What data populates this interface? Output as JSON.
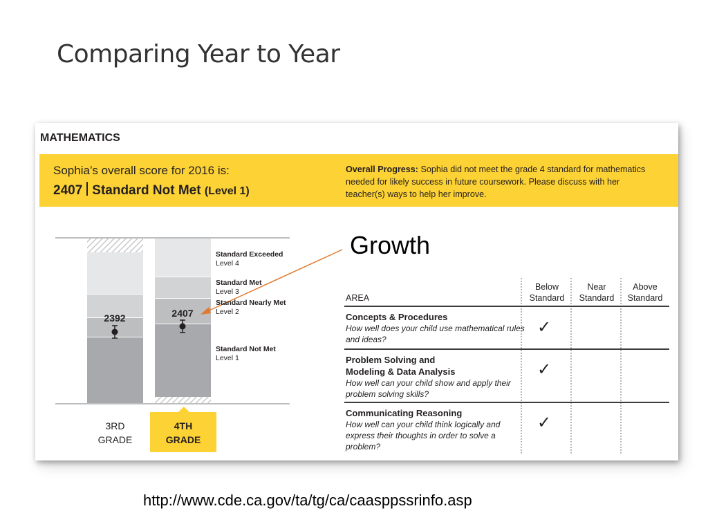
{
  "slide": {
    "title": "Comparing Year to Year",
    "annotation": "Growth",
    "source_url": "http://www.cde.ca.gov/ta/tg/ca/caasppssrinfo.asp"
  },
  "report": {
    "subject": "MATHEMATICS",
    "score_intro": "Sophia’s overall score for 2016 is:",
    "score_value": "2407",
    "score_status": "Standard Not Met",
    "score_level": "(Level 1)",
    "progress_label": "Overall Progress:",
    "progress_text": " Sophia did not meet the grade 4 standard for mathematics needed for likely success in future coursework. Please discuss with her teacher(s) ways to help her improve.",
    "bars": [
      {
        "grade_line1": "3RD",
        "grade_line2": "GRADE",
        "score": "2392",
        "current": false
      },
      {
        "grade_line1": "4TH",
        "grade_line2": "GRADE",
        "score": "2407",
        "current": true
      }
    ],
    "levels": [
      {
        "name": "Standard Exceeded",
        "level": "Level 4"
      },
      {
        "name": "Standard Met",
        "level": "Level 3"
      },
      {
        "name": "Standard Nearly Met",
        "level": "Level 2"
      },
      {
        "name": "Standard Not Met",
        "level": "Level 1"
      }
    ],
    "table": {
      "area_header": "AREA",
      "columns": [
        {
          "line1": "Below",
          "line2": "Standard"
        },
        {
          "line1": "Near",
          "line2": "Standard"
        },
        {
          "line1": "Above",
          "line2": "Standard"
        }
      ],
      "rows": [
        {
          "title": "Concepts & Procedures",
          "title2": "",
          "desc": "How well does your child use mathematical rules and ideas?",
          "result": "Below Standard",
          "mark": "✓"
        },
        {
          "title": "Problem Solving and",
          "title2": "Modeling & Data Analysis",
          "desc": "How well can your child show and apply their problem solving skills?",
          "result": "Below Standard",
          "mark": "✓"
        },
        {
          "title": "Communicating Reasoning",
          "title2": "",
          "desc": "How well can your child think logically and express their thoughts in order to solve a problem?",
          "result": "Below Standard",
          "mark": "✓"
        }
      ]
    }
  },
  "colors": {
    "accent_yellow": "#fdd235",
    "level4_fill": "#e6e7e8",
    "level3_fill": "#d1d3d4",
    "level2_fill": "#bcbec0",
    "level1_fill": "#a7a9ac",
    "arrow_orange": "#e07a2e"
  }
}
